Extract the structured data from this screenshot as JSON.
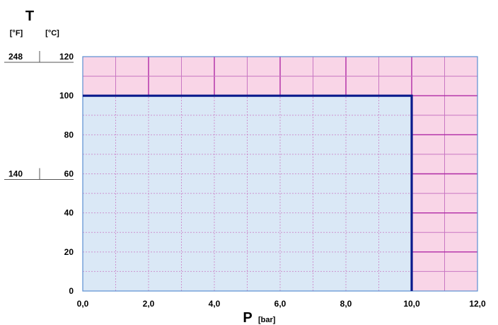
{
  "chart_data": {
    "type": "area",
    "description_free": true,
    "x_axis": {
      "letter": "P",
      "unit": "[bar]",
      "range": [
        0,
        12
      ],
      "ticks": [
        0,
        2,
        4,
        6,
        8,
        10,
        12
      ],
      "tick_labels": [
        "0,0",
        "2,0",
        "4,0",
        "6,0",
        "8,0",
        "10,0",
        "12,0"
      ],
      "minor_step": 1
    },
    "y_axis": {
      "letter": "T",
      "unit_c": "[°C]",
      "unit_f": "[°F]",
      "range": [
        0,
        120
      ],
      "ticks": [
        0,
        20,
        40,
        60,
        80,
        100,
        120
      ],
      "tick_labels": [
        "0",
        "20",
        "40",
        "60",
        "80",
        "100",
        "120"
      ],
      "minor_step": 10,
      "fahrenheit_marks": [
        {
          "c": 120,
          "f": "248"
        },
        {
          "c": 60,
          "f": "140"
        }
      ]
    },
    "operating_region": {
      "p_max": 10,
      "t_max": 100,
      "boundary": [
        [
          0,
          100
        ],
        [
          10,
          100
        ],
        [
          10,
          0
        ]
      ]
    },
    "colors": {
      "allowed_fill": "#dae8f6",
      "restricted_fill": "#f9d5e7",
      "boundary": "#0a1a8c",
      "grid_major": "#b02aa6",
      "grid_minor": "#c977c3",
      "frame": "#5b8fd1"
    }
  }
}
